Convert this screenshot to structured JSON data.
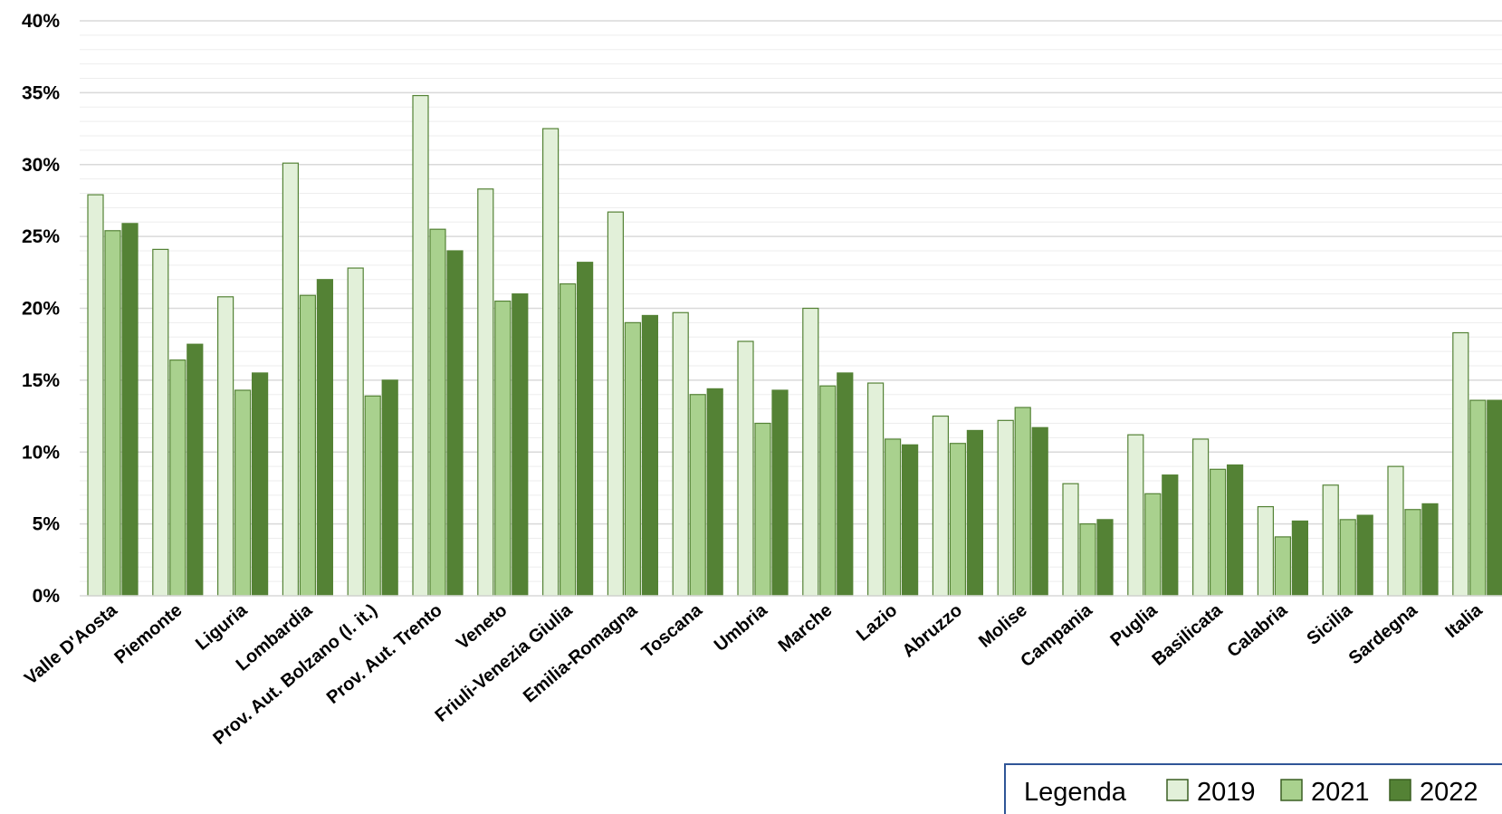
{
  "chart_data": {
    "type": "bar",
    "categories": [
      "Valle D'Aosta",
      "Piemonte",
      "Liguria",
      "Lombardia",
      "Prov. Aut. Bolzano (l. it.)",
      "Prov. Aut. Trento",
      "Veneto",
      "Friuli-Venezia Giulia",
      "Emilia-Romagna",
      "Toscana",
      "Umbria",
      "Marche",
      "Lazio",
      "Abruzzo",
      "Molise",
      "Campania",
      "Puglia",
      "Basilicata",
      "Calabria",
      "Sicilia",
      "Sardegna",
      "Italia"
    ],
    "series": [
      {
        "name": "2019",
        "color": "#e2f0d9",
        "values": [
          27.9,
          24.1,
          20.8,
          30.1,
          22.8,
          34.8,
          28.3,
          32.5,
          26.7,
          19.7,
          17.7,
          20.0,
          14.8,
          12.5,
          12.2,
          7.8,
          11.2,
          10.9,
          6.2,
          7.7,
          9.0,
          18.3
        ]
      },
      {
        "name": "2021",
        "color": "#a9d18e",
        "values": [
          25.4,
          16.4,
          14.3,
          20.9,
          13.9,
          25.5,
          20.5,
          21.7,
          19.0,
          14.0,
          12.0,
          14.6,
          10.9,
          10.6,
          13.1,
          5.0,
          7.1,
          8.8,
          4.1,
          5.3,
          6.0,
          13.6
        ]
      },
      {
        "name": "2022",
        "color": "#548235",
        "values": [
          25.9,
          17.5,
          15.5,
          22.0,
          15.0,
          24.0,
          21.0,
          23.2,
          19.5,
          14.4,
          14.3,
          15.5,
          10.5,
          11.5,
          11.7,
          5.3,
          8.4,
          9.1,
          5.2,
          5.6,
          6.4,
          13.6
        ]
      }
    ],
    "ylim": [
      0,
      40
    ],
    "yticks": [
      "0%",
      "5%",
      "10%",
      "15%",
      "20%",
      "25%",
      "30%",
      "35%",
      "40%"
    ],
    "grid": true,
    "legend": {
      "title": "Legenda",
      "placement": "bottom-right"
    },
    "bar_edge_color": "#548235"
  }
}
